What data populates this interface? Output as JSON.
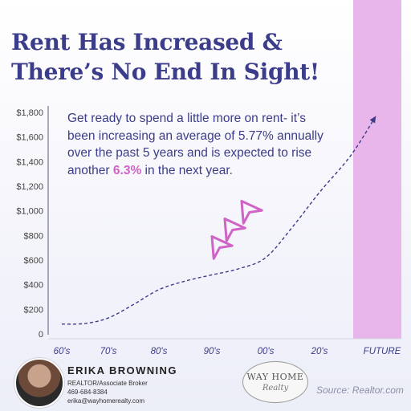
{
  "headline": {
    "line1": "Rent Has Increased &",
    "line2": "There’s No End In Sight!"
  },
  "body": {
    "text": "Get ready to spend a little more on rent- it’s been increasing an average of 5.77% annually over the past 5 years and is expected to rise another ",
    "highlight": "6.3%",
    "suffix": " in the next year."
  },
  "chart_data": {
    "type": "line",
    "title": "",
    "xlabel": "",
    "ylabel": "",
    "categories": [
      "60's",
      "70's",
      "80's",
      "90's",
      "00's",
      "20's",
      "FUTURE"
    ],
    "y_ticks": [
      "$1,800",
      "$1,600",
      "$1,400",
      "$1,200",
      "$1,000",
      "$800",
      "$600",
      "$400",
      "$200",
      "0"
    ],
    "ylim": [
      0,
      1800
    ],
    "line_style": "dashed",
    "arrow_end": true,
    "highlight_band": "FUTURE",
    "series": [
      {
        "x": [
          0,
          0.5,
          1,
          1.5,
          2,
          2.5,
          3,
          3.5,
          4,
          4.5,
          5,
          5.5,
          5.9
        ],
        "values": [
          80,
          85,
          130,
          240,
          360,
          430,
          480,
          530,
          620,
          870,
          1150,
          1450,
          1770
        ]
      }
    ]
  },
  "colors": {
    "navy": "#3b3d8a",
    "pink": "#d063c6",
    "band": "#e8b6ea"
  },
  "decorations": {
    "arrows_icon": "three-pink-outline-arrows"
  },
  "footer": {
    "agent_name": "ERIKA BROWNING",
    "agent_title": "REALTOR/Associate Broker",
    "agent_phone": "469-684-8384",
    "agent_email": "erika@wayhomerealty.com",
    "logo_line1": "WAY HOME",
    "logo_line2": "Realty",
    "source": "Source: Realtor.com"
  }
}
